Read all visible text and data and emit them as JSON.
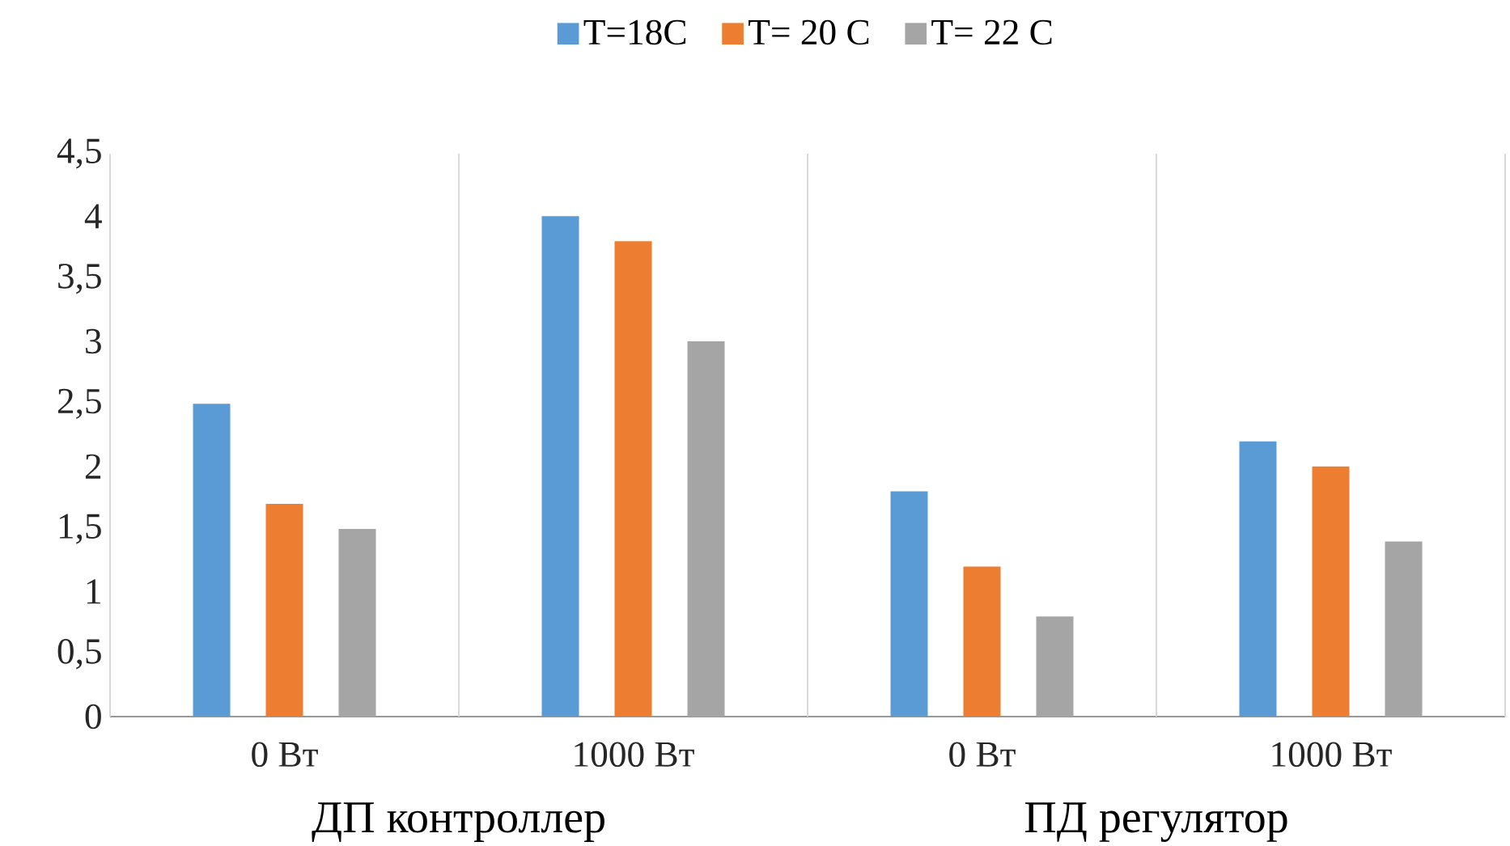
{
  "chart_data": {
    "type": "bar",
    "categories": [
      "0 Вт",
      "1000 Вт",
      "0 Вт",
      "1000 Вт"
    ],
    "series": [
      {
        "name": "T=18C",
        "color": "#5b9bd5",
        "values": [
          2.5,
          4.0,
          1.8,
          2.2
        ]
      },
      {
        "name": "T= 20 C",
        "color": "#ed7d31",
        "values": [
          1.7,
          3.8,
          1.2,
          2.0
        ]
      },
      {
        "name": "T= 22 C",
        "color": "#a5a5a5",
        "values": [
          1.5,
          3.0,
          0.8,
          1.4
        ]
      }
    ],
    "ylim": [
      0,
      4.5
    ],
    "yticks": [
      0,
      {
        "value": 0.5,
        "label": "0,5"
      },
      1,
      {
        "value": 1.5,
        "label": "1,5"
      },
      2,
      {
        "value": 2.5,
        "label": "2,5"
      },
      3,
      {
        "value": 3.5,
        "label": "3,5"
      },
      4,
      {
        "value": 4.5,
        "label": "4,5"
      }
    ],
    "annotations": [
      "ДП контроллер",
      "ПД регулятор"
    ],
    "grid": "x",
    "legend": "top"
  }
}
